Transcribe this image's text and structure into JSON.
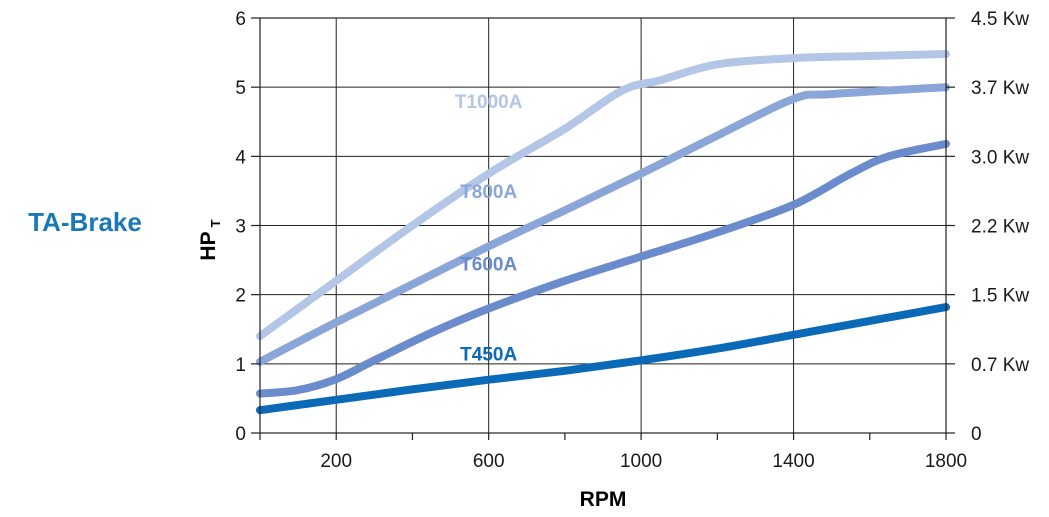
{
  "title": "TA-Brake",
  "chart_data": {
    "type": "line",
    "title": "TA-Brake",
    "xlabel": "RPM",
    "ylabel": "HP",
    "ylabel_subscript": "T",
    "xlim": [
      0,
      1800
    ],
    "ylim": [
      0,
      6
    ],
    "x_ticks": [
      200,
      600,
      1000,
      1400,
      1800
    ],
    "x_minor_ticks": [
      0,
      200,
      400,
      600,
      800,
      1000,
      1200,
      1400,
      1600,
      1800
    ],
    "x_grid": [
      200,
      600,
      1000,
      1400
    ],
    "y_ticks": [
      0,
      1,
      2,
      3,
      4,
      5,
      6
    ],
    "right_axis_labels": [
      "0",
      "0.7 Kw",
      "1.5 Kw",
      "2.2 Kw",
      "3.0 Kw",
      "3.7 Kw",
      "4.5 Kw"
    ],
    "grid": true,
    "series": [
      {
        "name": "T1000A",
        "color": "#b3c6e6",
        "label_at": [
          600,
          4.7
        ],
        "points": [
          [
            0,
            1.4
          ],
          [
            200,
            2.2
          ],
          [
            400,
            3.0
          ],
          [
            600,
            3.75
          ],
          [
            800,
            4.4
          ],
          [
            950,
            4.95
          ],
          [
            1050,
            5.1
          ],
          [
            1200,
            5.33
          ],
          [
            1400,
            5.42
          ],
          [
            1600,
            5.45
          ],
          [
            1800,
            5.48
          ]
        ]
      },
      {
        "name": "T800A",
        "color": "#8aa5d8",
        "label_at": [
          600,
          3.4
        ],
        "points": [
          [
            0,
            1.03
          ],
          [
            200,
            1.6
          ],
          [
            400,
            2.15
          ],
          [
            600,
            2.7
          ],
          [
            800,
            3.22
          ],
          [
            1000,
            3.75
          ],
          [
            1200,
            4.3
          ],
          [
            1400,
            4.83
          ],
          [
            1500,
            4.9
          ],
          [
            1800,
            5.0
          ]
        ]
      },
      {
        "name": "T600A",
        "color": "#6a8ccc",
        "label_at": [
          600,
          2.35
        ],
        "points": [
          [
            0,
            0.57
          ],
          [
            100,
            0.62
          ],
          [
            200,
            0.78
          ],
          [
            300,
            1.05
          ],
          [
            450,
            1.45
          ],
          [
            600,
            1.8
          ],
          [
            800,
            2.2
          ],
          [
            1000,
            2.55
          ],
          [
            1200,
            2.9
          ],
          [
            1400,
            3.3
          ],
          [
            1550,
            3.75
          ],
          [
            1650,
            4.0
          ],
          [
            1800,
            4.18
          ]
        ]
      },
      {
        "name": "T450A",
        "color": "#0a6ab7",
        "label_at": [
          600,
          1.05
        ],
        "points": [
          [
            0,
            0.33
          ],
          [
            200,
            0.48
          ],
          [
            400,
            0.63
          ],
          [
            600,
            0.77
          ],
          [
            800,
            0.9
          ],
          [
            1000,
            1.05
          ],
          [
            1200,
            1.22
          ],
          [
            1400,
            1.42
          ],
          [
            1600,
            1.62
          ],
          [
            1800,
            1.82
          ]
        ]
      }
    ]
  }
}
